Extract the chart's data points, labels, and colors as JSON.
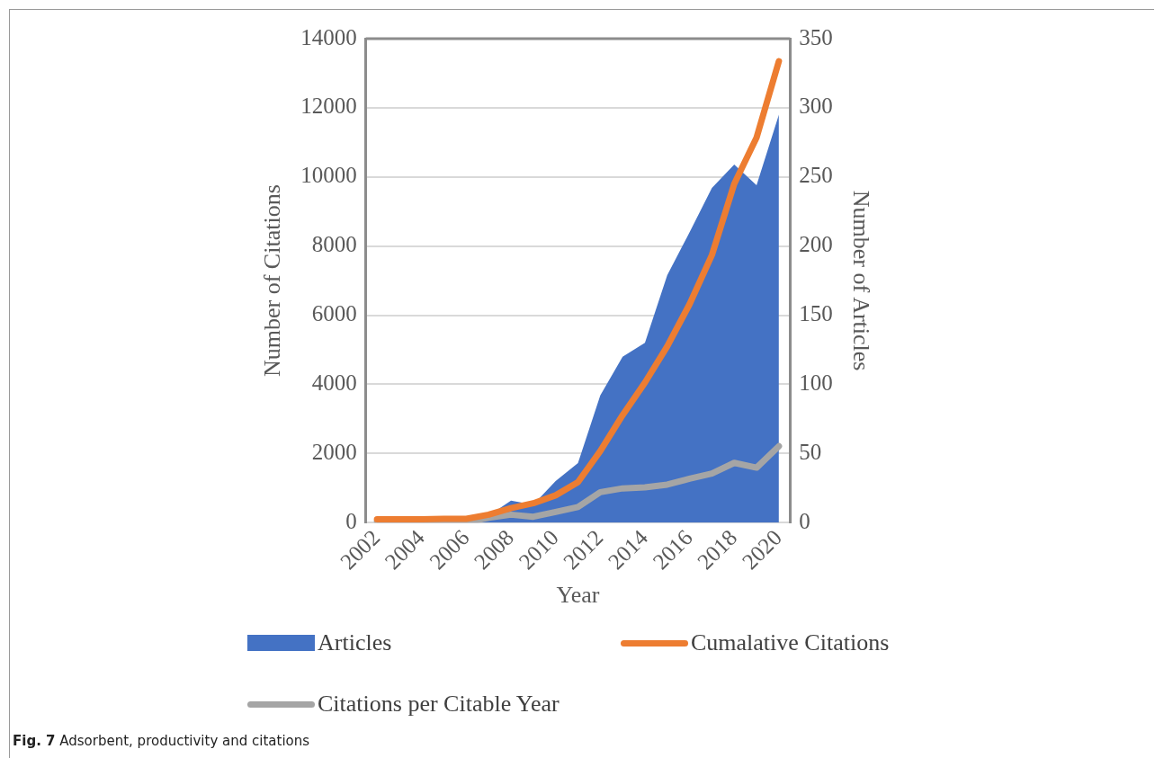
{
  "chart_data": {
    "type": "line",
    "xlabel": "Year",
    "ylabel": "Number of Citations",
    "y2label": "Number of Articles",
    "categories": [
      "2002",
      null,
      "2004",
      null,
      "2006",
      null,
      "2008",
      null,
      "2010",
      null,
      "2012",
      null,
      "2014",
      null,
      "2016",
      null,
      "2018",
      null,
      "2020"
    ],
    "series": [
      {
        "name": "Articles",
        "type": "area",
        "axis": "y2",
        "color": "#4472c4",
        "values": [
          1,
          1,
          1,
          2,
          2,
          5,
          16,
          13,
          30,
          43,
          92,
          120,
          130,
          179,
          210,
          242,
          259,
          244,
          295
        ]
      },
      {
        "name": "Cumalative Citations",
        "type": "line",
        "color": "#ed7d31",
        "values": [
          100,
          100,
          100,
          110,
          110,
          230,
          420,
          560,
          790,
          1170,
          2070,
          3110,
          4050,
          5100,
          6320,
          7740,
          9800,
          11140,
          13350
        ]
      },
      {
        "name": "Citations per Citable Year",
        "type": "line",
        "color": "#a5a5a5",
        "values": [
          40,
          10,
          10,
          10,
          10,
          140,
          230,
          170,
          310,
          450,
          880,
          990,
          1020,
          1100,
          1270,
          1420,
          1730,
          1590,
          2210
        ]
      }
    ],
    "ylim": [
      0,
      14000
    ],
    "yticks": [
      0,
      2000,
      4000,
      6000,
      8000,
      10000,
      12000,
      14000
    ],
    "y2lim": [
      0,
      350
    ],
    "y2ticks": [
      0,
      50,
      100,
      150,
      200,
      250,
      300,
      350
    ],
    "grid": "y",
    "legend": "bottom",
    "annotations": [
      "Fig. 7 Adsorbent, productivity and citations"
    ]
  }
}
